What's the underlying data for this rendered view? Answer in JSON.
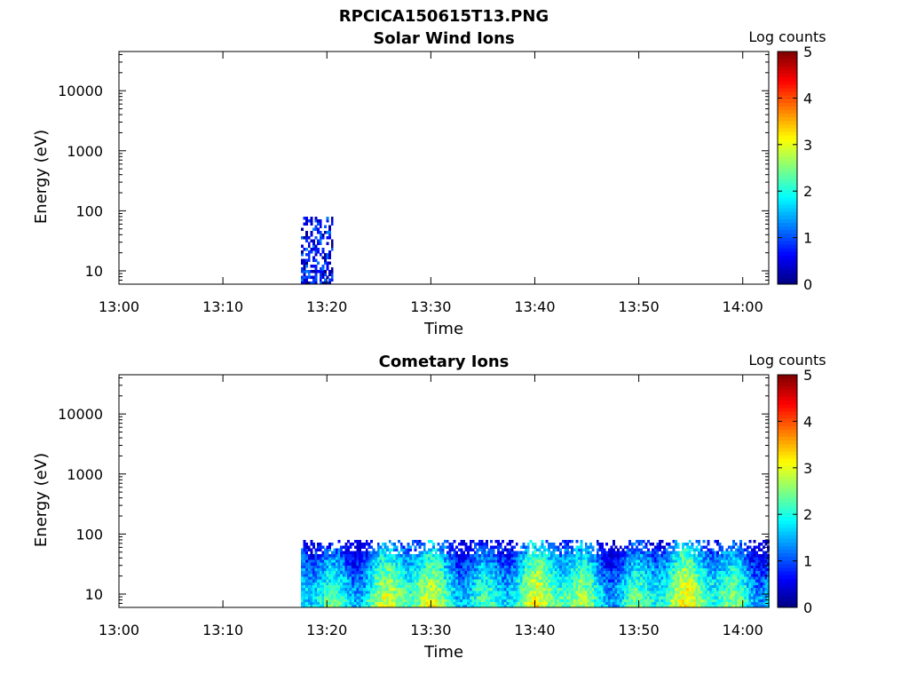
{
  "figure_title": "RPCICA150615T13.PNG",
  "chart_data": [
    {
      "type": "heatmap",
      "title": "Solar Wind Ions",
      "xlabel": "Time",
      "ylabel": "Energy (eV)",
      "x_ticks": [
        "13:00",
        "13:10",
        "13:20",
        "13:30",
        "13:40",
        "13:50",
        "14:00"
      ],
      "y_ticks": [
        "10",
        "100",
        "1000",
        "10000"
      ],
      "y_scale": "log",
      "ylim": [
        6,
        45000
      ],
      "xlim_minutes": [
        0,
        62.5
      ],
      "colorbar": {
        "label": "Log counts",
        "ticks": [
          "0",
          "1",
          "2",
          "3",
          "4",
          "5"
        ],
        "range": [
          0,
          5
        ],
        "colormap": "jet"
      },
      "signal": {
        "start_minute": 17.5,
        "end_minute": 20.5,
        "energy_min_eV": 6,
        "energy_max_eV": 80,
        "typical_log_counts": [
          0,
          1.2
        ]
      }
    },
    {
      "type": "heatmap",
      "title": "Cometary Ions",
      "xlabel": "Time",
      "ylabel": "Energy (eV)",
      "x_ticks": [
        "13:00",
        "13:10",
        "13:20",
        "13:30",
        "13:40",
        "13:50",
        "14:00"
      ],
      "y_ticks": [
        "10",
        "100",
        "1000",
        "10000"
      ],
      "y_scale": "log",
      "ylim": [
        6,
        45000
      ],
      "xlim_minutes": [
        0,
        62.5
      ],
      "colorbar": {
        "label": "Log counts",
        "ticks": [
          "0",
          "1",
          "2",
          "3",
          "4",
          "5"
        ],
        "range": [
          0,
          5
        ],
        "colormap": "jet"
      },
      "signal": {
        "start_minute": 17.5,
        "end_minute": 62.5,
        "energy_min_eV": 6,
        "energy_max_eV": 80,
        "typical_log_counts": [
          0.5,
          3.5
        ]
      }
    }
  ]
}
